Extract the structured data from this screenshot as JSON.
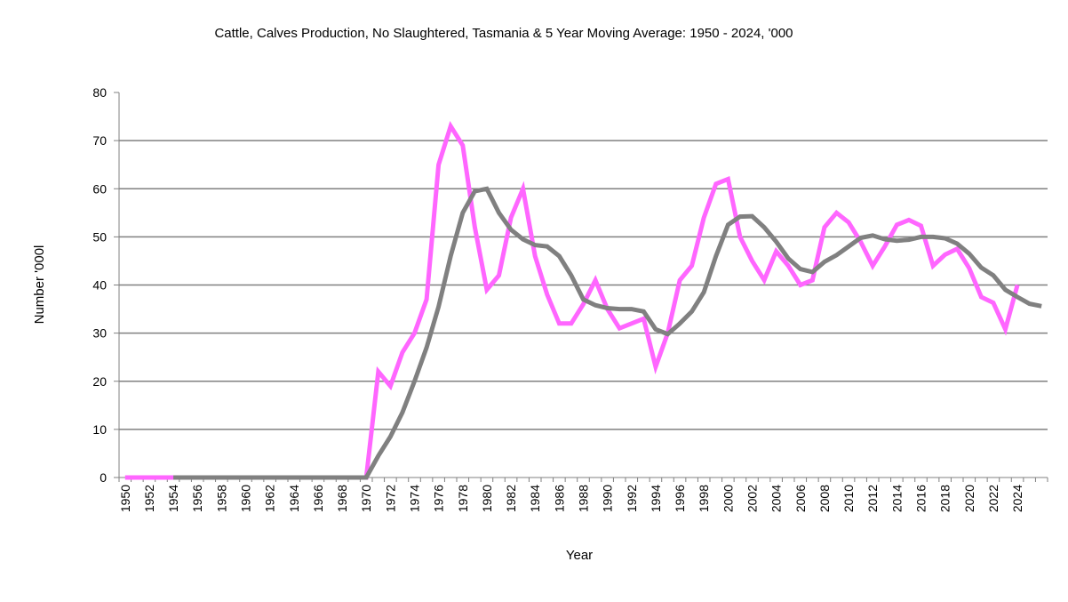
{
  "chart_data": {
    "type": "line",
    "title": "Cattle, Calves Production, No Slaughtered, Tasmania & 5 Year Moving Average: 1950 - 2024, '000",
    "xlabel": "Year",
    "ylabel": "Number '000l",
    "ylim": [
      0,
      80
    ],
    "yticks": [
      0,
      10,
      20,
      30,
      40,
      50,
      60,
      70,
      80
    ],
    "grid": true,
    "legend": "none",
    "x_start": 1950,
    "x_end": 2026,
    "xtick_labels": [
      "1950",
      "1952",
      "1954",
      "1956",
      "1958",
      "1960",
      "1962",
      "1964",
      "1966",
      "1968",
      "1970",
      "1972",
      "1974",
      "1976",
      "1978",
      "1980",
      "1982",
      "1984",
      "1986",
      "1988",
      "1990",
      "1992",
      "1994",
      "1996",
      "1998",
      "2000",
      "2002",
      "2004",
      "2006",
      "2008",
      "2010",
      "2012",
      "2014",
      "2016",
      "2018",
      "2020",
      "2022",
      "2024"
    ],
    "series": [
      {
        "name": "Cattle, Calves Production, No Slaughtered, Tasmania",
        "color": "#ff66ff",
        "start_year": 1950,
        "values": [
          0,
          0,
          0,
          0,
          0,
          0,
          0,
          0,
          0,
          0,
          0,
          0,
          0,
          0,
          0,
          0,
          0,
          0,
          0,
          0,
          0,
          22,
          19,
          26,
          30,
          37,
          65,
          73,
          69,
          52,
          39,
          42,
          54,
          60,
          46,
          38,
          32,
          32,
          36,
          41,
          35,
          31,
          32,
          33,
          23,
          30,
          41,
          44,
          54,
          61,
          62,
          50,
          45,
          41,
          47,
          44,
          40,
          41,
          52,
          55,
          53,
          49,
          44,
          48,
          52.5,
          53.5,
          52.3,
          44,
          46.3,
          47.5,
          43.5,
          37.5,
          36.3,
          30.8,
          40
        ]
      },
      {
        "name": "5 Year Moving Average",
        "color": "#808080",
        "start_year": 1954,
        "values": [
          0,
          0,
          0,
          0,
          0,
          0,
          0,
          0,
          0,
          0,
          0,
          0,
          0,
          0,
          0,
          0,
          0,
          4.5,
          8.5,
          13.5,
          20,
          27,
          35.5,
          46,
          55,
          59.5,
          60,
          55,
          51.5,
          49.5,
          48.3,
          48,
          46,
          42,
          37,
          35.8,
          35.2,
          35,
          35,
          34.5,
          30.8,
          29.8,
          32,
          34.5,
          38.5,
          46,
          52.5,
          54.2,
          54.3,
          52,
          49,
          45.5,
          43.3,
          42.7,
          44.8,
          46.2,
          48,
          49.8,
          50.3,
          49.5,
          49.2,
          49.4,
          50,
          50,
          49.7,
          48.6,
          46.5,
          43.6,
          42,
          39,
          37.5,
          36.1,
          35.6
        ]
      }
    ]
  }
}
